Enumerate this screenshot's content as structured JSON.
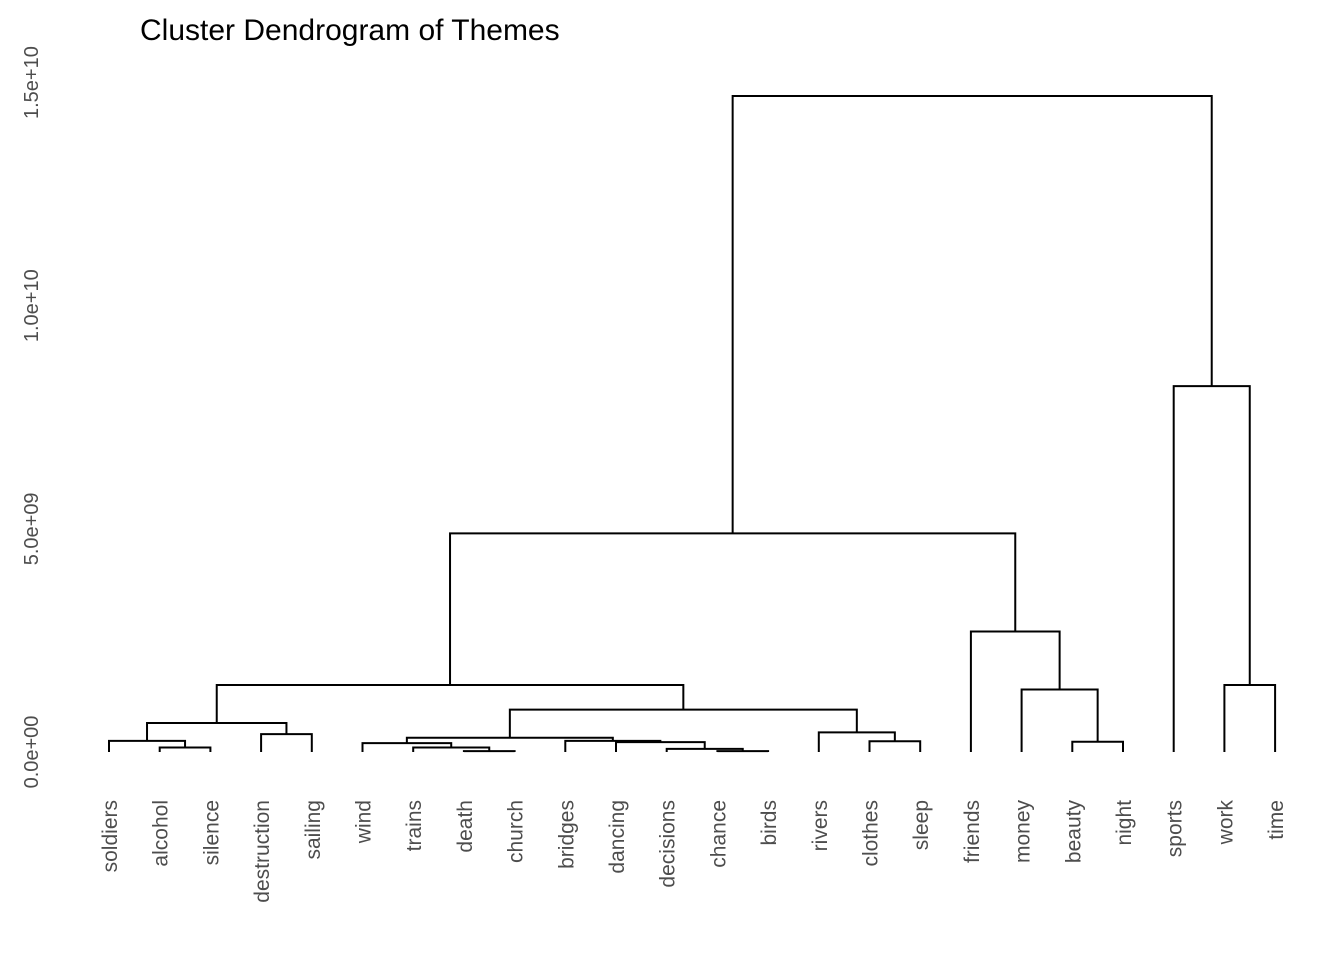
{
  "chart_data": {
    "type": "dendrogram",
    "title": "Cluster Dendrogram of Themes",
    "xlabel": "",
    "ylabel": "",
    "ylim": [
      0,
      16000000000
    ],
    "yticks": [
      {
        "value": 0,
        "label": "0.0e+00"
      },
      {
        "value": 5000000000,
        "label": "5.0e+09"
      },
      {
        "value": 10000000000,
        "label": "1.0e+10"
      },
      {
        "value": 15000000000,
        "label": "1.5e+10"
      }
    ],
    "grid": false,
    "legend": "none",
    "leaves": [
      "soldiers",
      "alcohol",
      "silence",
      "destruction",
      "sailing",
      "wind",
      "trains",
      "death",
      "church",
      "bridges",
      "dancing",
      "decisions",
      "chance",
      "birds",
      "rivers",
      "clothes",
      "sleep",
      "friends",
      "money",
      "beauty",
      "night",
      "sports",
      "work",
      "time"
    ],
    "merges": [
      {
        "id": "m1",
        "left": "alcohol",
        "right": "silence",
        "height": 100000000
      },
      {
        "id": "m2",
        "left": "soldiers",
        "right": "m1",
        "height": 250000000
      },
      {
        "id": "m3",
        "left": "destruction",
        "right": "sailing",
        "height": 400000000
      },
      {
        "id": "m4",
        "left": "m2",
        "right": "m3",
        "height": 650000000
      },
      {
        "id": "m5",
        "left": "church",
        "right": "death",
        "height": 20000000
      },
      {
        "id": "m6",
        "left": "m5",
        "right": "trains",
        "height": 100000000
      },
      {
        "id": "m7",
        "left": "chance",
        "right": "birds",
        "height": 20000000
      },
      {
        "id": "m8",
        "left": "m7",
        "right": "decisions",
        "height": 70000000
      },
      {
        "id": "m9",
        "left": "m8",
        "right": "dancing",
        "height": 220000000
      },
      {
        "id": "m10",
        "left": "m9",
        "right": "bridges",
        "height": 250000000
      },
      {
        "id": "m11",
        "left": "m6",
        "right": "wind",
        "height": 200000000
      },
      {
        "id": "m12",
        "left": "m11",
        "right": "m10",
        "height": 320000000
      },
      {
        "id": "m13",
        "left": "clothes",
        "right": "sleep",
        "height": 240000000
      },
      {
        "id": "m14",
        "left": "rivers",
        "right": "m13",
        "height": 440000000
      },
      {
        "id": "m15",
        "left": "m12",
        "right": "m14",
        "height": 950000000
      },
      {
        "id": "m16",
        "left": "m4",
        "right": "m15",
        "height": 1500000000
      },
      {
        "id": "m17",
        "left": "beauty",
        "right": "night",
        "height": 230000000
      },
      {
        "id": "m18",
        "left": "money",
        "right": "m17",
        "height": 1400000000
      },
      {
        "id": "m19",
        "left": "friends",
        "right": "m18",
        "height": 2700000000
      },
      {
        "id": "m20",
        "left": "m16",
        "right": "m19",
        "height": 4900000000
      },
      {
        "id": "m21",
        "left": "work",
        "right": "time",
        "height": 1500000000
      },
      {
        "id": "m22",
        "left": "sports",
        "right": "m21",
        "height": 8200000000
      },
      {
        "id": "m23",
        "left": "m20",
        "right": "m22",
        "height": 14700000000
      }
    ]
  }
}
